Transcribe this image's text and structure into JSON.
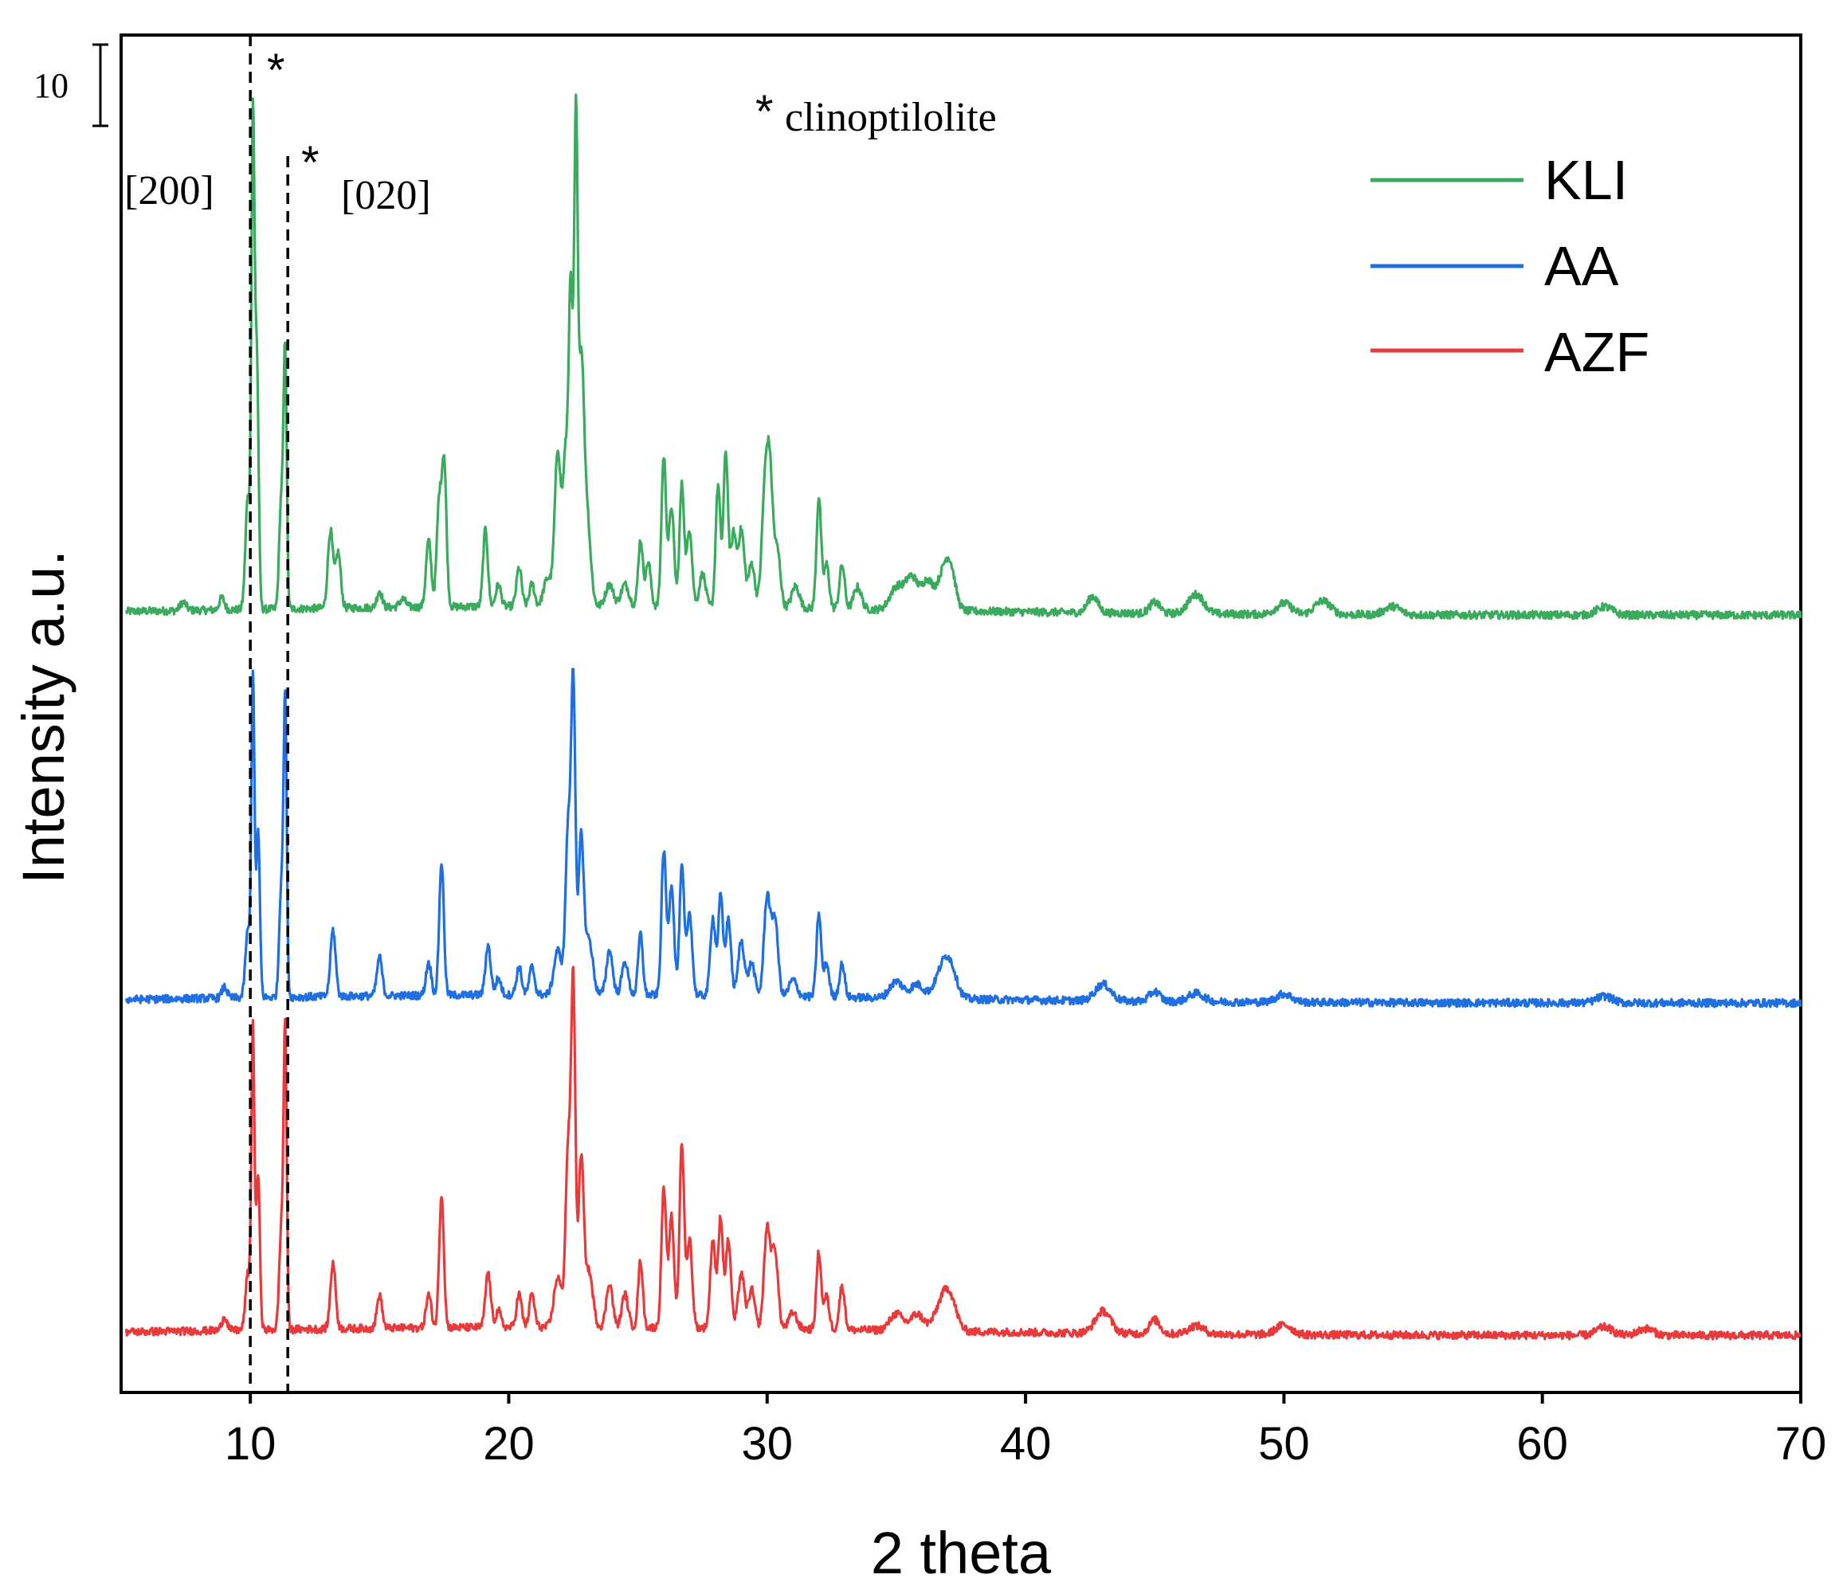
{
  "chart_data": {
    "type": "line",
    "title": "",
    "xlabel": "2 theta",
    "ylabel": "Intensity a.u.",
    "xlim": [
      5,
      70
    ],
    "xticks": [
      {
        "value": 10,
        "label": "10"
      },
      {
        "value": 20,
        "label": "20"
      },
      {
        "value": 30,
        "label": "30"
      },
      {
        "value": 40,
        "label": "40"
      },
      {
        "value": 50,
        "label": "50"
      },
      {
        "value": 60,
        "label": "60"
      },
      {
        "value": 70,
        "label": "70"
      }
    ],
    "scale_bar": {
      "label": "10",
      "size": 10
    },
    "series": [
      {
        "name": "KLI",
        "color": "#3aaa5c",
        "offset": 100,
        "baseline": 1.6,
        "peaks": [
          [
            7.4,
            1.5,
            0.12
          ],
          [
            8.9,
            2.2,
            0.1
          ],
          [
            9.9,
            20,
            0.09
          ],
          [
            10.1,
            86,
            0.06
          ],
          [
            10.25,
            45,
            0.07
          ],
          [
            11.2,
            20,
            0.08
          ],
          [
            11.35,
            45,
            0.06
          ],
          [
            13.1,
            14,
            0.1
          ],
          [
            13.4,
            10,
            0.1
          ],
          [
            15.0,
            3,
            0.1
          ],
          [
            15.9,
            1.5,
            0.12
          ],
          [
            16.9,
            12,
            0.1
          ],
          [
            17.3,
            18,
            0.09
          ],
          [
            17.5,
            26,
            0.09
          ],
          [
            19.1,
            14,
            0.09
          ],
          [
            19.6,
            4,
            0.1
          ],
          [
            20.4,
            7,
            0.1
          ],
          [
            20.9,
            4,
            0.1
          ],
          [
            21.5,
            5,
            0.15
          ],
          [
            21.9,
            28,
            0.12
          ],
          [
            22.2,
            26,
            0.1
          ],
          [
            22.4,
            55,
            0.08
          ],
          [
            22.6,
            84,
            0.07
          ],
          [
            22.8,
            38,
            0.1
          ],
          [
            23.0,
            18,
            0.15
          ],
          [
            23.9,
            4,
            0.15
          ],
          [
            24.5,
            4,
            0.15
          ],
          [
            25.1,
            12,
            0.09
          ],
          [
            25.4,
            8,
            0.1
          ],
          [
            26.0,
            27,
            0.09
          ],
          [
            26.3,
            18,
            0.1
          ],
          [
            26.7,
            22,
            0.09
          ],
          [
            27.0,
            14,
            0.1
          ],
          [
            27.5,
            6,
            0.12
          ],
          [
            28.1,
            22,
            0.09
          ],
          [
            28.4,
            28,
            0.09
          ],
          [
            28.7,
            13,
            0.1
          ],
          [
            29.0,
            14,
            0.12
          ],
          [
            29.4,
            8,
            0.12
          ],
          [
            29.9,
            18,
            0.12
          ],
          [
            30.1,
            24,
            0.12
          ],
          [
            30.4,
            10,
            0.12
          ],
          [
            31.1,
            4,
            0.15
          ],
          [
            32.0,
            20,
            0.09
          ],
          [
            32.3,
            8,
            0.1
          ],
          [
            32.9,
            8,
            0.1
          ],
          [
            33.5,
            4,
            0.15
          ],
          [
            35.0,
            4,
            0.25
          ],
          [
            35.6,
            6,
            0.25
          ],
          [
            36.2,
            5,
            0.2
          ],
          [
            36.8,
            6,
            0.25
          ],
          [
            37.1,
            6,
            0.2
          ],
          [
            42.6,
            3,
            0.2
          ],
          [
            45.0,
            2,
            0.2
          ],
          [
            46.6,
            3.5,
            0.3
          ],
          [
            50.0,
            2,
            0.3
          ],
          [
            51.5,
            2.5,
            0.3
          ],
          [
            54.2,
            1.5,
            0.3
          ],
          [
            62.4,
            1.5,
            0.3
          ]
        ]
      },
      {
        "name": "AA",
        "color": "#1f6fe0",
        "offset": 30,
        "baseline": 1.5,
        "peaks": [
          [
            9.0,
            2.0,
            0.1
          ],
          [
            9.9,
            12,
            0.09
          ],
          [
            10.1,
            58,
            0.06
          ],
          [
            10.3,
            30,
            0.07
          ],
          [
            11.2,
            20,
            0.08
          ],
          [
            11.35,
            52,
            0.06
          ],
          [
            13.2,
            12,
            0.1
          ],
          [
            15.0,
            7,
            0.1
          ],
          [
            16.9,
            6,
            0.1
          ],
          [
            17.4,
            24,
            0.09
          ],
          [
            19.2,
            9,
            0.1
          ],
          [
            19.6,
            3,
            0.1
          ],
          [
            20.4,
            5,
            0.1
          ],
          [
            20.9,
            5,
            0.1
          ],
          [
            21.9,
            8,
            0.15
          ],
          [
            22.3,
            30,
            0.1
          ],
          [
            22.5,
            55,
            0.08
          ],
          [
            22.8,
            28,
            0.1
          ],
          [
            23.1,
            10,
            0.15
          ],
          [
            23.9,
            8,
            0.12
          ],
          [
            24.5,
            6,
            0.12
          ],
          [
            25.1,
            11,
            0.09
          ],
          [
            26.0,
            26,
            0.09
          ],
          [
            26.3,
            20,
            0.1
          ],
          [
            26.7,
            23,
            0.09
          ],
          [
            27.0,
            15,
            0.1
          ],
          [
            27.9,
            14,
            0.1
          ],
          [
            28.2,
            18,
            0.09
          ],
          [
            28.5,
            14,
            0.1
          ],
          [
            29.0,
            10,
            0.12
          ],
          [
            29.4,
            6,
            0.12
          ],
          [
            30.0,
            18,
            0.12
          ],
          [
            30.3,
            14,
            0.12
          ],
          [
            31.0,
            3,
            0.15
          ],
          [
            32.0,
            15,
            0.09
          ],
          [
            32.3,
            6,
            0.1
          ],
          [
            32.9,
            6,
            0.1
          ],
          [
            35.0,
            3,
            0.25
          ],
          [
            35.8,
            2.5,
            0.25
          ],
          [
            36.8,
            5,
            0.3
          ],
          [
            37.1,
            4,
            0.25
          ],
          [
            43.0,
            3,
            0.3
          ],
          [
            45.0,
            1.8,
            0.2
          ],
          [
            46.6,
            1.5,
            0.3
          ],
          [
            50.0,
            1.5,
            0.3
          ],
          [
            62.4,
            1.2,
            0.3
          ]
        ]
      },
      {
        "name": "AZF",
        "color": "#e8393b",
        "offset": -30,
        "baseline": 1.5,
        "peaks": [
          [
            9.0,
            2.5,
            0.1
          ],
          [
            9.9,
            10,
            0.09
          ],
          [
            10.1,
            54,
            0.06
          ],
          [
            10.3,
            28,
            0.07
          ],
          [
            11.2,
            18,
            0.08
          ],
          [
            11.35,
            53,
            0.06
          ],
          [
            13.2,
            12,
            0.1
          ],
          [
            15.0,
            6,
            0.1
          ],
          [
            16.9,
            6,
            0.1
          ],
          [
            17.4,
            24,
            0.09
          ],
          [
            19.2,
            10,
            0.1
          ],
          [
            19.6,
            3,
            0.1
          ],
          [
            20.4,
            6,
            0.1
          ],
          [
            20.9,
            6,
            0.1
          ],
          [
            21.9,
            9,
            0.15
          ],
          [
            22.3,
            32,
            0.1
          ],
          [
            22.5,
            60,
            0.08
          ],
          [
            22.8,
            30,
            0.1
          ],
          [
            23.1,
            10,
            0.15
          ],
          [
            23.9,
            8,
            0.12
          ],
          [
            24.5,
            6,
            0.12
          ],
          [
            25.1,
            12,
            0.09
          ],
          [
            26.0,
            25,
            0.09
          ],
          [
            26.3,
            20,
            0.1
          ],
          [
            26.7,
            33,
            0.09
          ],
          [
            27.0,
            16,
            0.1
          ],
          [
            27.9,
            16,
            0.1
          ],
          [
            28.2,
            20,
            0.09
          ],
          [
            28.5,
            16,
            0.1
          ],
          [
            29.0,
            10,
            0.12
          ],
          [
            29.4,
            7,
            0.12
          ],
          [
            30.0,
            18,
            0.12
          ],
          [
            30.3,
            14,
            0.12
          ],
          [
            31.0,
            3,
            0.15
          ],
          [
            32.0,
            14,
            0.09
          ],
          [
            32.3,
            6,
            0.1
          ],
          [
            32.9,
            8,
            0.1
          ],
          [
            35.0,
            3,
            0.25
          ],
          [
            35.8,
            3,
            0.25
          ],
          [
            36.8,
            5,
            0.3
          ],
          [
            37.1,
            4,
            0.25
          ],
          [
            43.0,
            4,
            0.3
          ],
          [
            45.0,
            2.5,
            0.2
          ],
          [
            46.6,
            1.5,
            0.3
          ],
          [
            50.0,
            1.8,
            0.3
          ],
          [
            62.4,
            1.5,
            0.3
          ],
          [
            64.0,
            1.2,
            0.3
          ]
        ]
      }
    ],
    "reference_lines": [
      {
        "x": 10.0,
        "label": "[200]",
        "mark": "*"
      },
      {
        "x": 11.45,
        "label": "[020]",
        "mark": "*"
      }
    ],
    "annotations": [
      {
        "mark": "*",
        "text": "clinoptilolite"
      }
    ],
    "legend": {
      "position": "top-right",
      "entries": [
        "KLI",
        "AA",
        "AZF"
      ]
    }
  }
}
